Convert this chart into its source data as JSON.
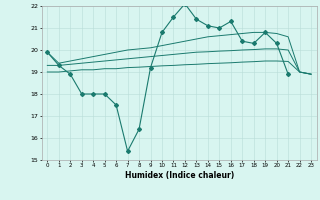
{
  "x": [
    0,
    1,
    2,
    3,
    4,
    5,
    6,
    7,
    8,
    9,
    10,
    11,
    12,
    13,
    14,
    15,
    16,
    17,
    18,
    19,
    20,
    21,
    22,
    23
  ],
  "line_main": [
    19.9,
    19.3,
    18.9,
    18.0,
    18.0,
    18.0,
    17.5,
    15.4,
    16.4,
    19.2,
    20.8,
    21.5,
    22.1,
    21.4,
    21.1,
    21.0,
    21.3,
    20.4,
    20.3,
    20.8,
    20.3,
    18.9,
    null,
    null
  ],
  "line_upper": [
    19.9,
    19.4,
    19.5,
    19.6,
    19.7,
    19.8,
    19.9,
    20.0,
    20.05,
    20.1,
    20.2,
    20.3,
    20.4,
    20.5,
    20.6,
    20.65,
    20.7,
    20.75,
    20.8,
    20.8,
    20.75,
    20.6,
    19.0,
    18.9
  ],
  "line_mid": [
    19.3,
    19.3,
    19.35,
    19.4,
    19.45,
    19.5,
    19.55,
    19.6,
    19.65,
    19.7,
    19.75,
    19.8,
    19.85,
    19.9,
    19.92,
    19.95,
    19.97,
    20.0,
    20.02,
    20.05,
    20.05,
    20.0,
    19.0,
    18.9
  ],
  "line_lower": [
    19.0,
    19.0,
    19.05,
    19.1,
    19.1,
    19.15,
    19.15,
    19.2,
    19.22,
    19.25,
    19.28,
    19.3,
    19.33,
    19.35,
    19.38,
    19.4,
    19.42,
    19.45,
    19.47,
    19.5,
    19.5,
    19.48,
    19.0,
    18.9
  ],
  "ylim": [
    15,
    22
  ],
  "yticks": [
    15,
    16,
    17,
    18,
    19,
    20,
    21,
    22
  ],
  "xticks": [
    0,
    1,
    2,
    3,
    4,
    5,
    6,
    7,
    8,
    9,
    10,
    11,
    12,
    13,
    14,
    15,
    16,
    17,
    18,
    19,
    20,
    21,
    22,
    23
  ],
  "xlabel": "Humidex (Indice chaleur)",
  "line_color": "#1a7a6e",
  "bg_color": "#d8f5f0",
  "grid_color": "#b8ddd8"
}
